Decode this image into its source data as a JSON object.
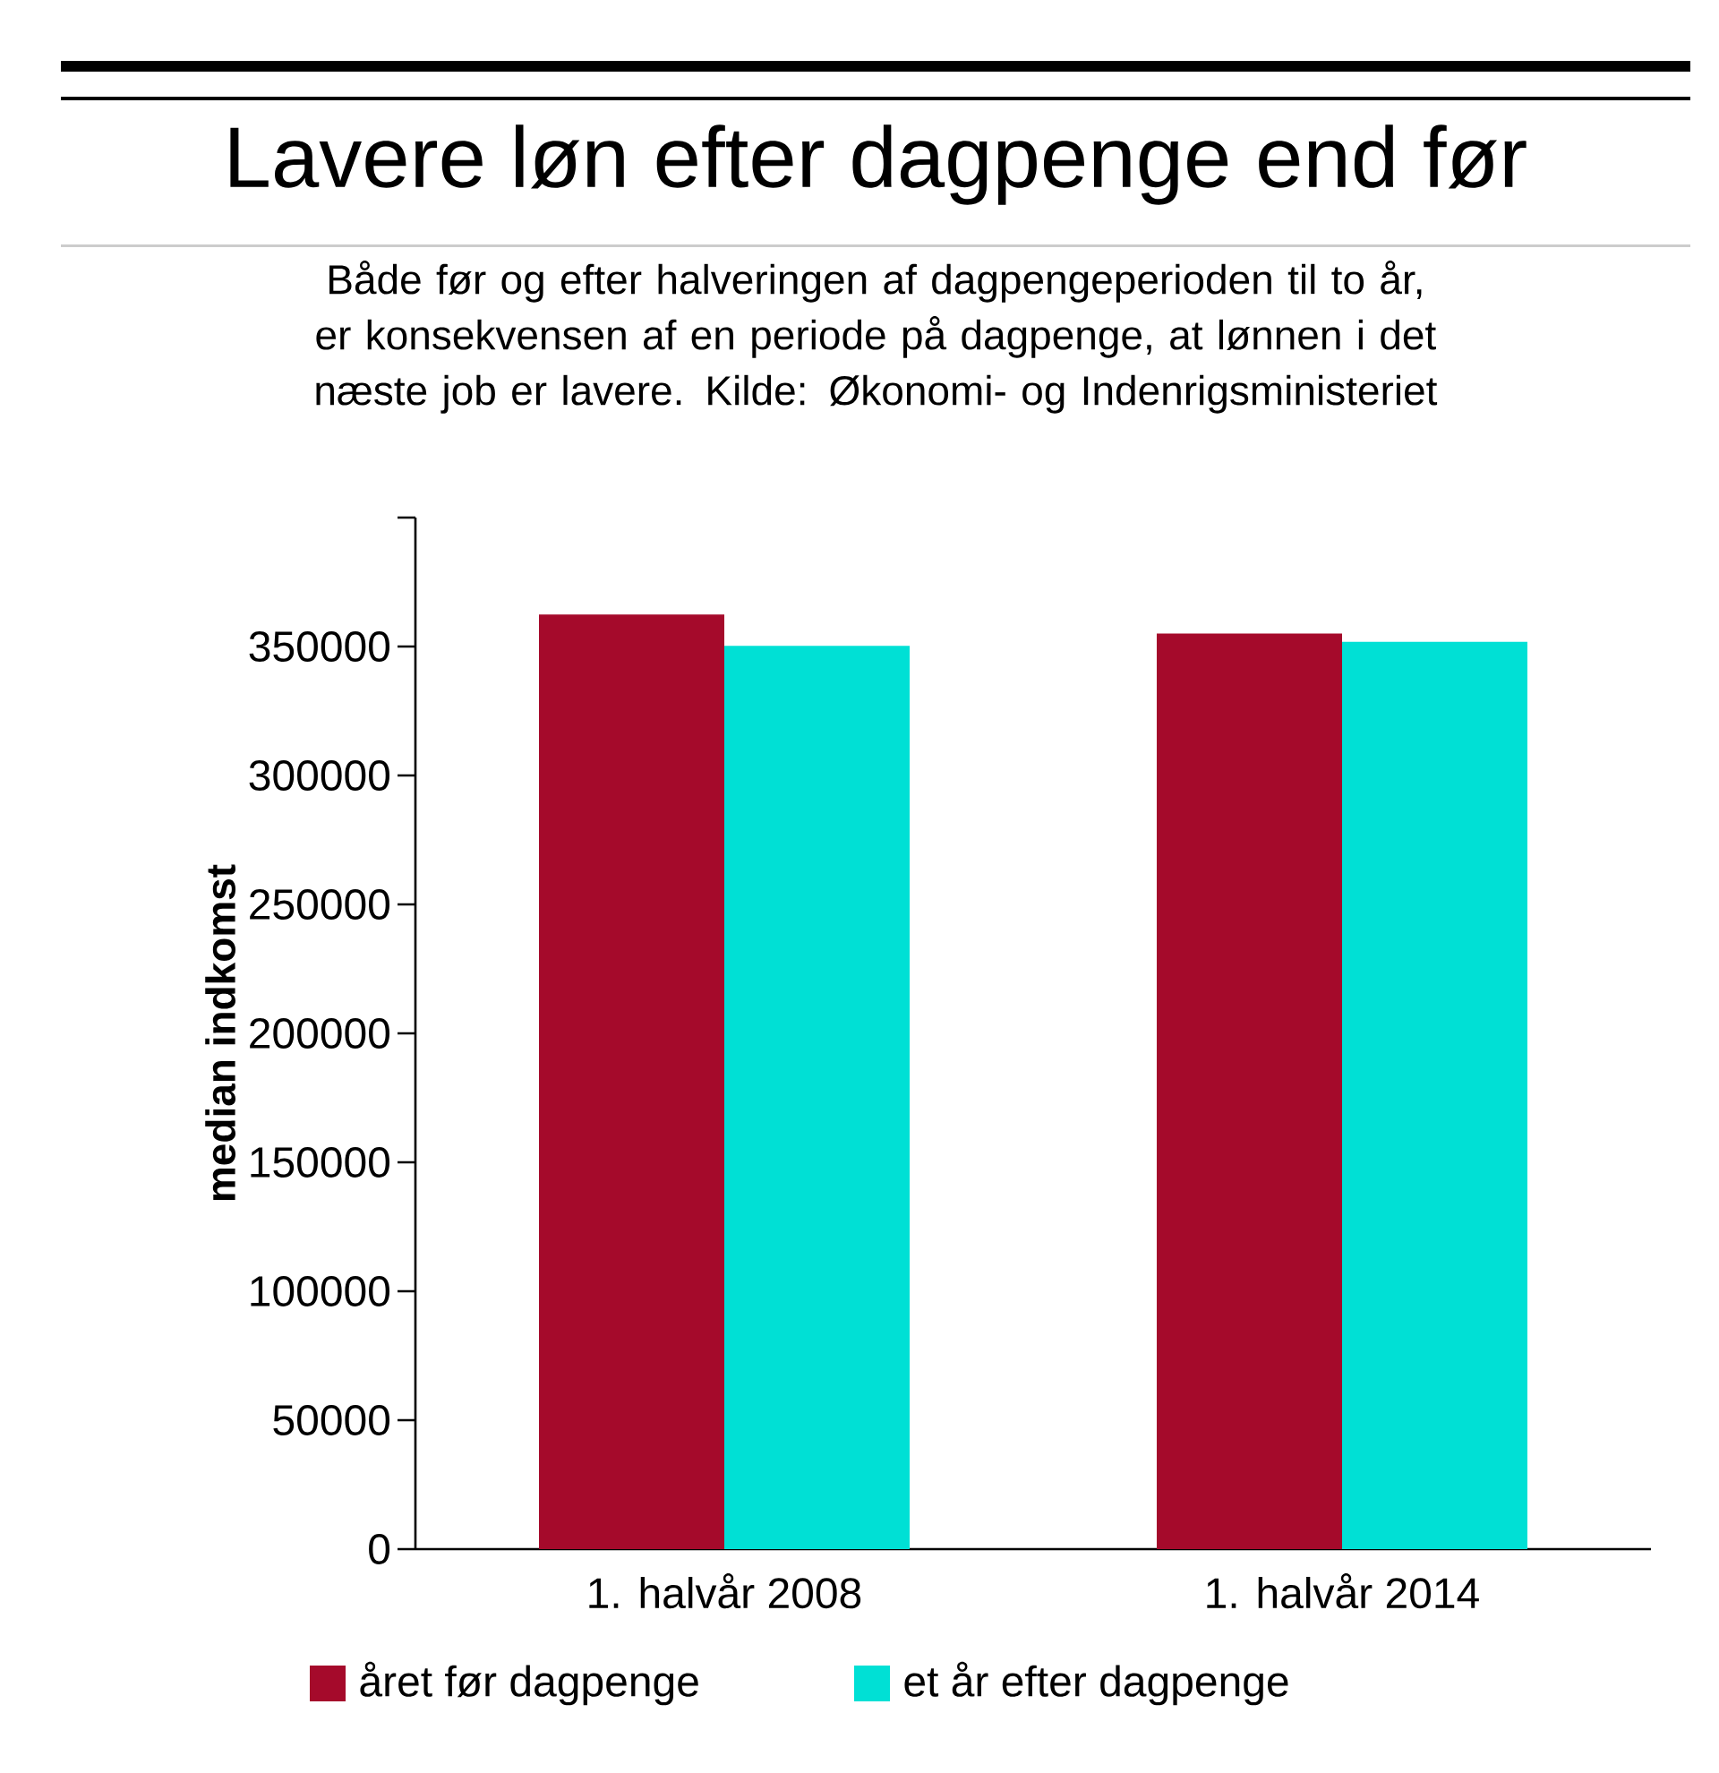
{
  "chart_data": {
    "type": "bar",
    "title": "Lavere løn efter dagpenge end før",
    "subtitle": "Både før og efter halveringen af dagpengeperioden til to år, er konsekvensen af en periode på dagpenge, at lønnen i det næste job er lavere. Kilde: Økonomi- og Indenrigsministeriet",
    "ylabel": "median indkomst",
    "categories": [
      "1. halvår 2008",
      "1. halvår 2014"
    ],
    "series": [
      {
        "name": "året før dagpenge",
        "color": "#a50a2b",
        "values": [
          362400,
          355000
        ]
      },
      {
        "name": "et år efter dagpenge",
        "color": "#00e0d5",
        "values": [
          350300,
          351800
        ]
      }
    ],
    "ylim": [
      0,
      400000
    ],
    "yticks": [
      0,
      50000,
      100000,
      150000,
      200000,
      250000,
      300000,
      350000,
      {
        "value": 400000,
        "label": null
      }
    ],
    "legend": "bottom"
  }
}
